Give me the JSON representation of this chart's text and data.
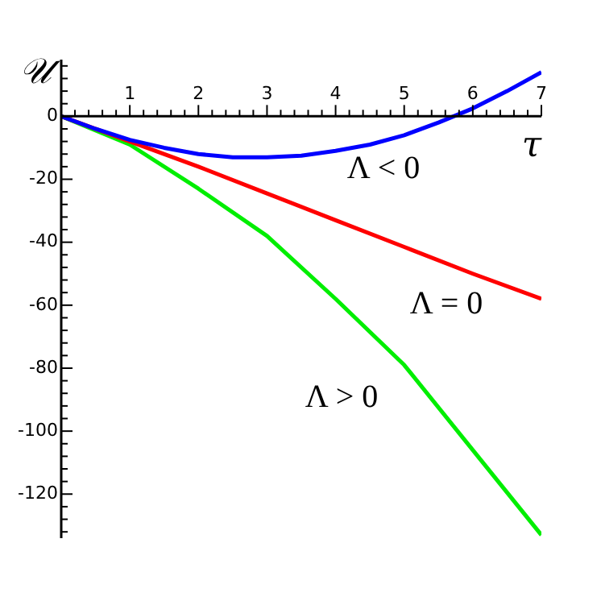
{
  "chart_data": {
    "type": "line",
    "xlabel": "τ",
    "ylabel": "𝒰",
    "xlim": [
      0,
      7
    ],
    "ylim": [
      -134,
      18
    ],
    "xticks": [
      {
        "value": 0.2,
        "label": null
      },
      {
        "value": 0.4,
        "label": null
      },
      {
        "value": 0.6,
        "label": null
      },
      {
        "value": 0.8,
        "label": null
      },
      1,
      {
        "value": 1.2,
        "label": null
      },
      {
        "value": 1.4,
        "label": null
      },
      {
        "value": 1.6,
        "label": null
      },
      {
        "value": 1.8,
        "label": null
      },
      2,
      {
        "value": 2.2,
        "label": null
      },
      {
        "value": 2.4,
        "label": null
      },
      {
        "value": 2.6,
        "label": null
      },
      {
        "value": 2.8,
        "label": null
      },
      3,
      {
        "value": 3.2,
        "label": null
      },
      {
        "value": 3.4,
        "label": null
      },
      {
        "value": 3.6,
        "label": null
      },
      {
        "value": 3.8,
        "label": null
      },
      4,
      {
        "value": 4.2,
        "label": null
      },
      {
        "value": 4.4,
        "label": null
      },
      {
        "value": 4.6,
        "label": null
      },
      {
        "value": 4.8,
        "label": null
      },
      5,
      {
        "value": 5.2,
        "label": null
      },
      {
        "value": 5.4,
        "label": null
      },
      {
        "value": 5.6,
        "label": null
      },
      {
        "value": 5.8,
        "label": null
      },
      6,
      {
        "value": 6.2,
        "label": null
      },
      {
        "value": 6.4,
        "label": null
      },
      {
        "value": 6.6,
        "label": null
      },
      {
        "value": 6.8,
        "label": null
      },
      7
    ],
    "yticks": [
      {
        "value": 16,
        "label": null
      },
      {
        "value": 12,
        "label": null
      },
      {
        "value": 8,
        "label": null
      },
      {
        "value": 4,
        "label": null
      },
      0,
      {
        "value": -4,
        "label": null
      },
      {
        "value": -8,
        "label": null
      },
      {
        "value": -12,
        "label": null
      },
      {
        "value": -16,
        "label": null
      },
      -20,
      {
        "value": -24,
        "label": null
      },
      {
        "value": -28,
        "label": null
      },
      {
        "value": -32,
        "label": null
      },
      {
        "value": -36,
        "label": null
      },
      -40,
      {
        "value": -44,
        "label": null
      },
      {
        "value": -48,
        "label": null
      },
      {
        "value": -52,
        "label": null
      },
      {
        "value": -56,
        "label": null
      },
      -60,
      {
        "value": -64,
        "label": null
      },
      {
        "value": -68,
        "label": null
      },
      {
        "value": -72,
        "label": null
      },
      {
        "value": -76,
        "label": null
      },
      -80,
      {
        "value": -84,
        "label": null
      },
      {
        "value": -88,
        "label": null
      },
      {
        "value": -92,
        "label": null
      },
      {
        "value": -96,
        "label": null
      },
      -100,
      {
        "value": -104,
        "label": null
      },
      {
        "value": -108,
        "label": null
      },
      {
        "value": -112,
        "label": null
      },
      {
        "value": -116,
        "label": null
      },
      -120,
      {
        "value": -124,
        "label": null
      },
      {
        "value": -128,
        "label": null
      },
      {
        "value": -132,
        "label": null
      }
    ],
    "grid": false,
    "legend": false,
    "marker": "none",
    "line_style": "solid",
    "series": [
      {
        "color": "#0000ff",
        "x": [
          0,
          0.5,
          1,
          1.5,
          2,
          2.5,
          3,
          3.5,
          4,
          4.5,
          5,
          5.5,
          6,
          6.5,
          7
        ],
        "values": [
          0,
          -4,
          -7.5,
          -10,
          -12,
          -13,
          -13,
          -12.5,
          -11,
          -9,
          -6,
          -2,
          2.5,
          8,
          14
        ]
      },
      {
        "color": "#ff0000",
        "x": [
          0,
          1,
          2,
          3,
          4,
          5,
          6,
          7
        ],
        "values": [
          0,
          -8,
          -16,
          -24.5,
          -33,
          -41.5,
          -50,
          -58
        ]
      },
      {
        "color": "#00ee00",
        "x": [
          0,
          1,
          2,
          3,
          4,
          5,
          6,
          7
        ],
        "values": [
          0,
          -9,
          -23,
          -38,
          -58,
          -79,
          -106,
          -133
        ]
      }
    ],
    "annotations": [
      "Λ < 0",
      "Λ = 0",
      "Λ > 0"
    ]
  }
}
